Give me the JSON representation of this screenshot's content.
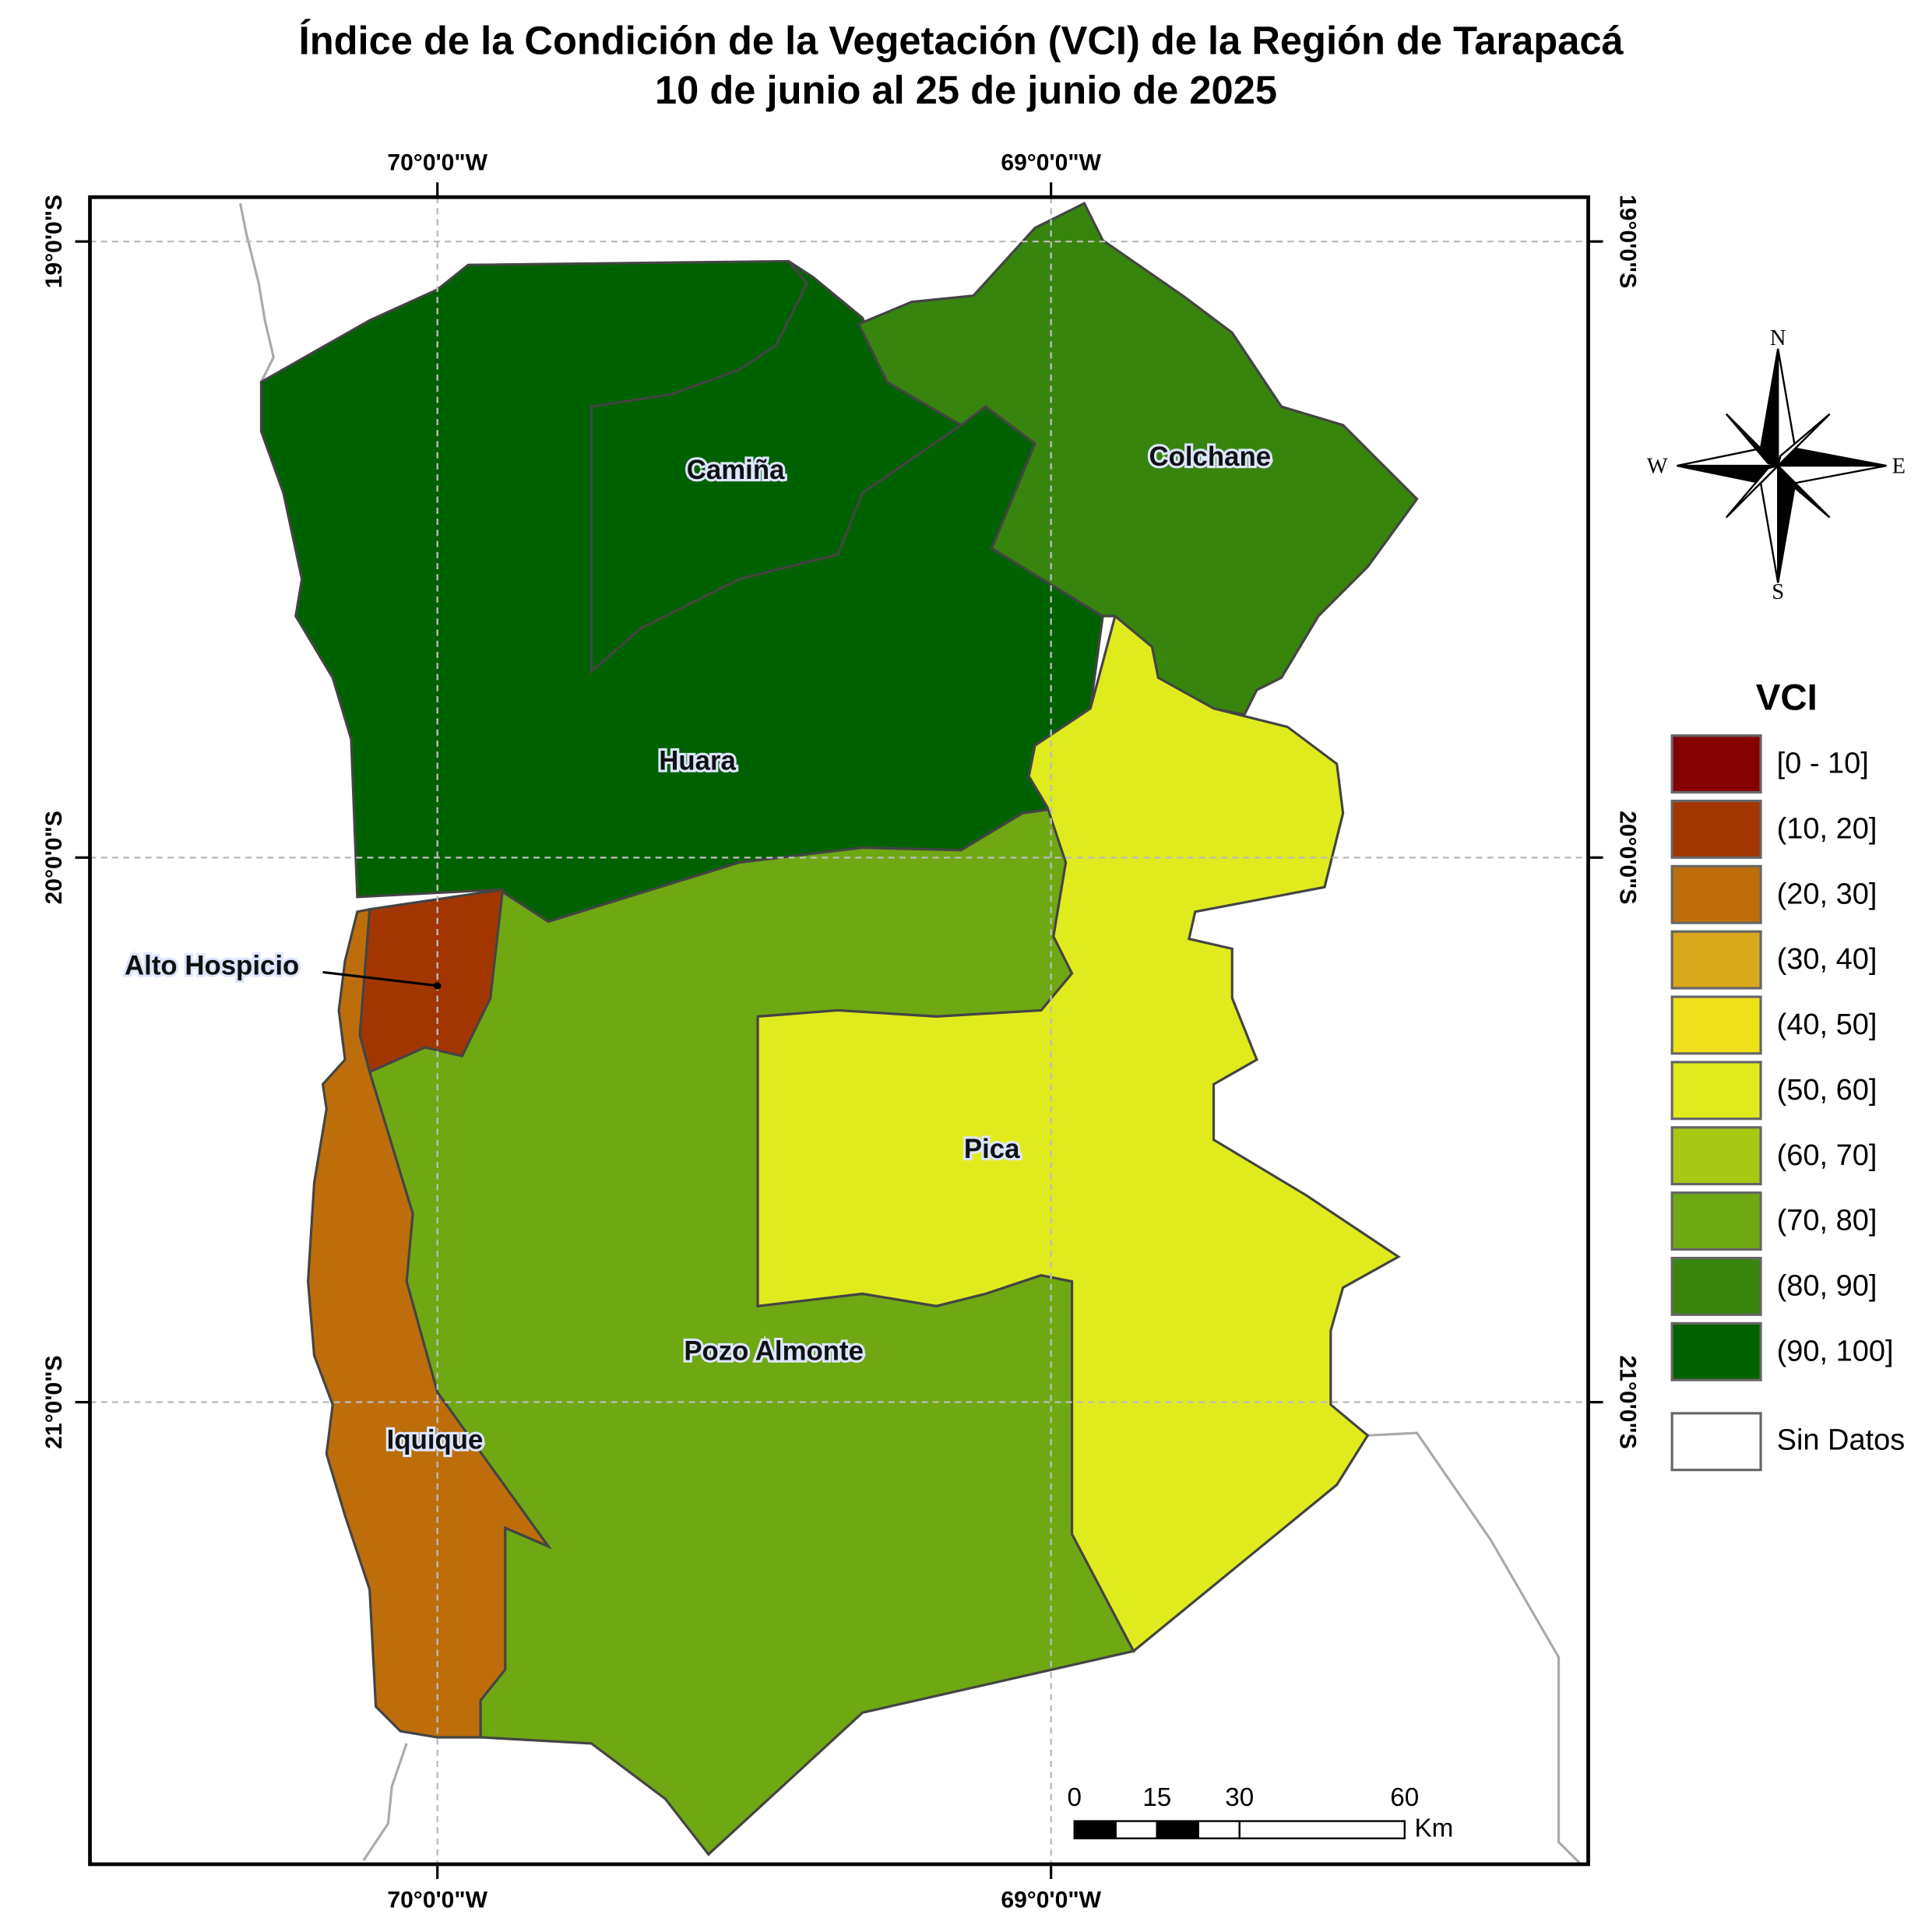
{
  "title": [
    "Índice de la Condición de la Vegetación (VCI) de la Región de Tarapacá",
    "10 de junio al 25 de junio de 2025"
  ],
  "graticule": {
    "lon_labels": [
      "70°0'0\"W",
      "69°0'0\"W"
    ],
    "lat_labels": [
      "19°0'0\"S",
      "20°0'0\"S",
      "21°0'0\"S"
    ]
  },
  "regions": [
    {
      "name": "Camiña",
      "color": "#006100"
    },
    {
      "name": "Colchane",
      "color": "#38850d"
    },
    {
      "name": "Huara",
      "color": "#006100"
    },
    {
      "name": "Alto Hospicio",
      "color": "#a33600"
    },
    {
      "name": "Pica",
      "color": "#e0eb1e"
    },
    {
      "name": "Pozo Almonte",
      "color": "#6fa812"
    },
    {
      "name": "Iquique",
      "color": "#bd6e0a"
    }
  ],
  "legend": {
    "title": "VCI",
    "items": [
      {
        "label": "[0 - 10]",
        "color": "#850000"
      },
      {
        "label": "(10, 20]",
        "color": "#a33600"
      },
      {
        "label": "(20, 30]",
        "color": "#bd6e0a"
      },
      {
        "label": "(30, 40]",
        "color": "#d6a81a"
      },
      {
        "label": "(40, 50]",
        "color": "#f0e01a"
      },
      {
        "label": "(50, 60]",
        "color": "#e0eb1e"
      },
      {
        "label": "(60, 70]",
        "color": "#a8c814"
      },
      {
        "label": "(70, 80]",
        "color": "#6fa812"
      },
      {
        "label": "(80, 90]",
        "color": "#38850d"
      },
      {
        "label": "(90, 100]",
        "color": "#006100"
      }
    ],
    "no_data": "Sin Datos"
  },
  "scale_bar": {
    "ticks": [
      0,
      15,
      30,
      60
    ],
    "unit": "Km"
  },
  "compass": {
    "north": "N",
    "south": "S",
    "east": "E",
    "west": "W"
  }
}
